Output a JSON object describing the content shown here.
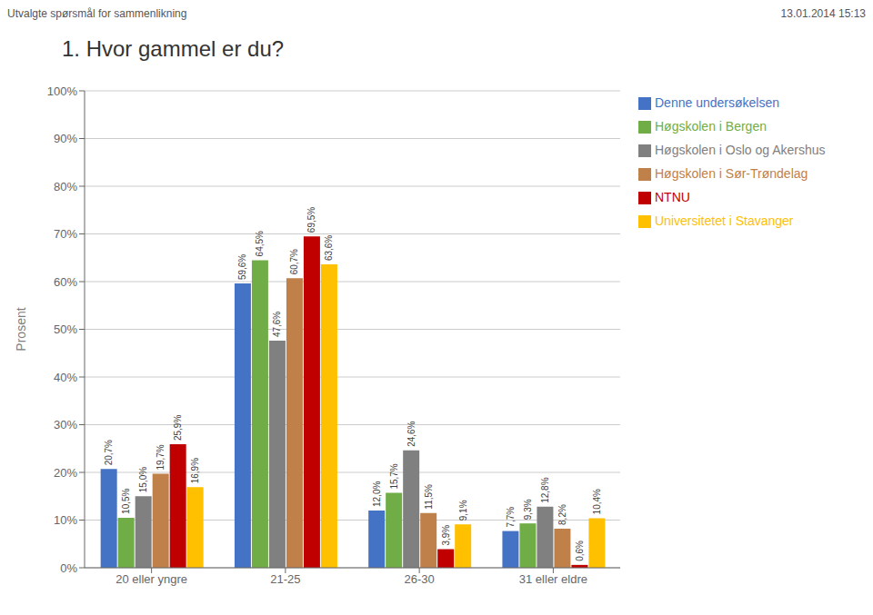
{
  "chart_data": {
    "type": "bar",
    "title": "1. Hvor gammel er du?",
    "annotations": [
      "Utvalgte spørsmål for sammenlikning",
      "13.01.2014 15:13"
    ],
    "ylabel": "Prosent",
    "categories": [
      "20 eller yngre",
      "21-25",
      "26-30",
      "31 eller eldre"
    ],
    "series": [
      {
        "name": "Denne undersøkelsen",
        "color": "#4472C4",
        "values": [
          20.7,
          59.6,
          12.0,
          7.7
        ],
        "value_labels": [
          "20,7%",
          "59,6%",
          "12,0%",
          "7,7%"
        ]
      },
      {
        "name": "Høgskolen i Bergen",
        "color": "#70AD47",
        "values": [
          10.5,
          64.5,
          15.7,
          9.3
        ],
        "value_labels": [
          "10,5%",
          "64,5%",
          "15,7%",
          "9,3%"
        ]
      },
      {
        "name": "Høgskolen i Oslo og Akershus",
        "color": "#808080",
        "values": [
          15.0,
          47.6,
          24.6,
          12.8
        ],
        "value_labels": [
          "15,0%",
          "47,6%",
          "24,6%",
          "12,8%"
        ]
      },
      {
        "name": "Høgskolen i Sør-Trøndelag",
        "color": "#C0804A",
        "values": [
          19.7,
          60.7,
          11.5,
          8.2
        ],
        "value_labels": [
          "19,7%",
          "60,7%",
          "11,5%",
          "8,2%"
        ]
      },
      {
        "name": "NTNU",
        "color": "#C00000",
        "values": [
          25.9,
          69.5,
          3.9,
          0.6
        ],
        "value_labels": [
          "25,9%",
          "69,5%",
          "3,9%",
          "0,6%"
        ]
      },
      {
        "name": "Universitetet i Stavanger",
        "color": "#FFC000",
        "values": [
          16.9,
          63.6,
          9.1,
          10.4
        ],
        "value_labels": [
          "16,9%",
          "63,6%",
          "9,1%",
          "10,4%"
        ]
      }
    ],
    "ylim": [
      0,
      100
    ],
    "yticks": [
      {
        "value": 0,
        "label": "0%"
      },
      {
        "value": 10,
        "label": "10%"
      },
      {
        "value": 20,
        "label": "20%"
      },
      {
        "value": 30,
        "label": "30%"
      },
      {
        "value": 40,
        "label": "40%"
      },
      {
        "value": 50,
        "label": "50%"
      },
      {
        "value": 60,
        "label": "60%"
      },
      {
        "value": 70,
        "label": "70%"
      },
      {
        "value": 80,
        "label": "80%"
      },
      {
        "value": 90,
        "label": "90%"
      },
      {
        "value": 100,
        "label": "100%"
      }
    ],
    "grid": true,
    "legend": "right",
    "data_labels": true
  }
}
